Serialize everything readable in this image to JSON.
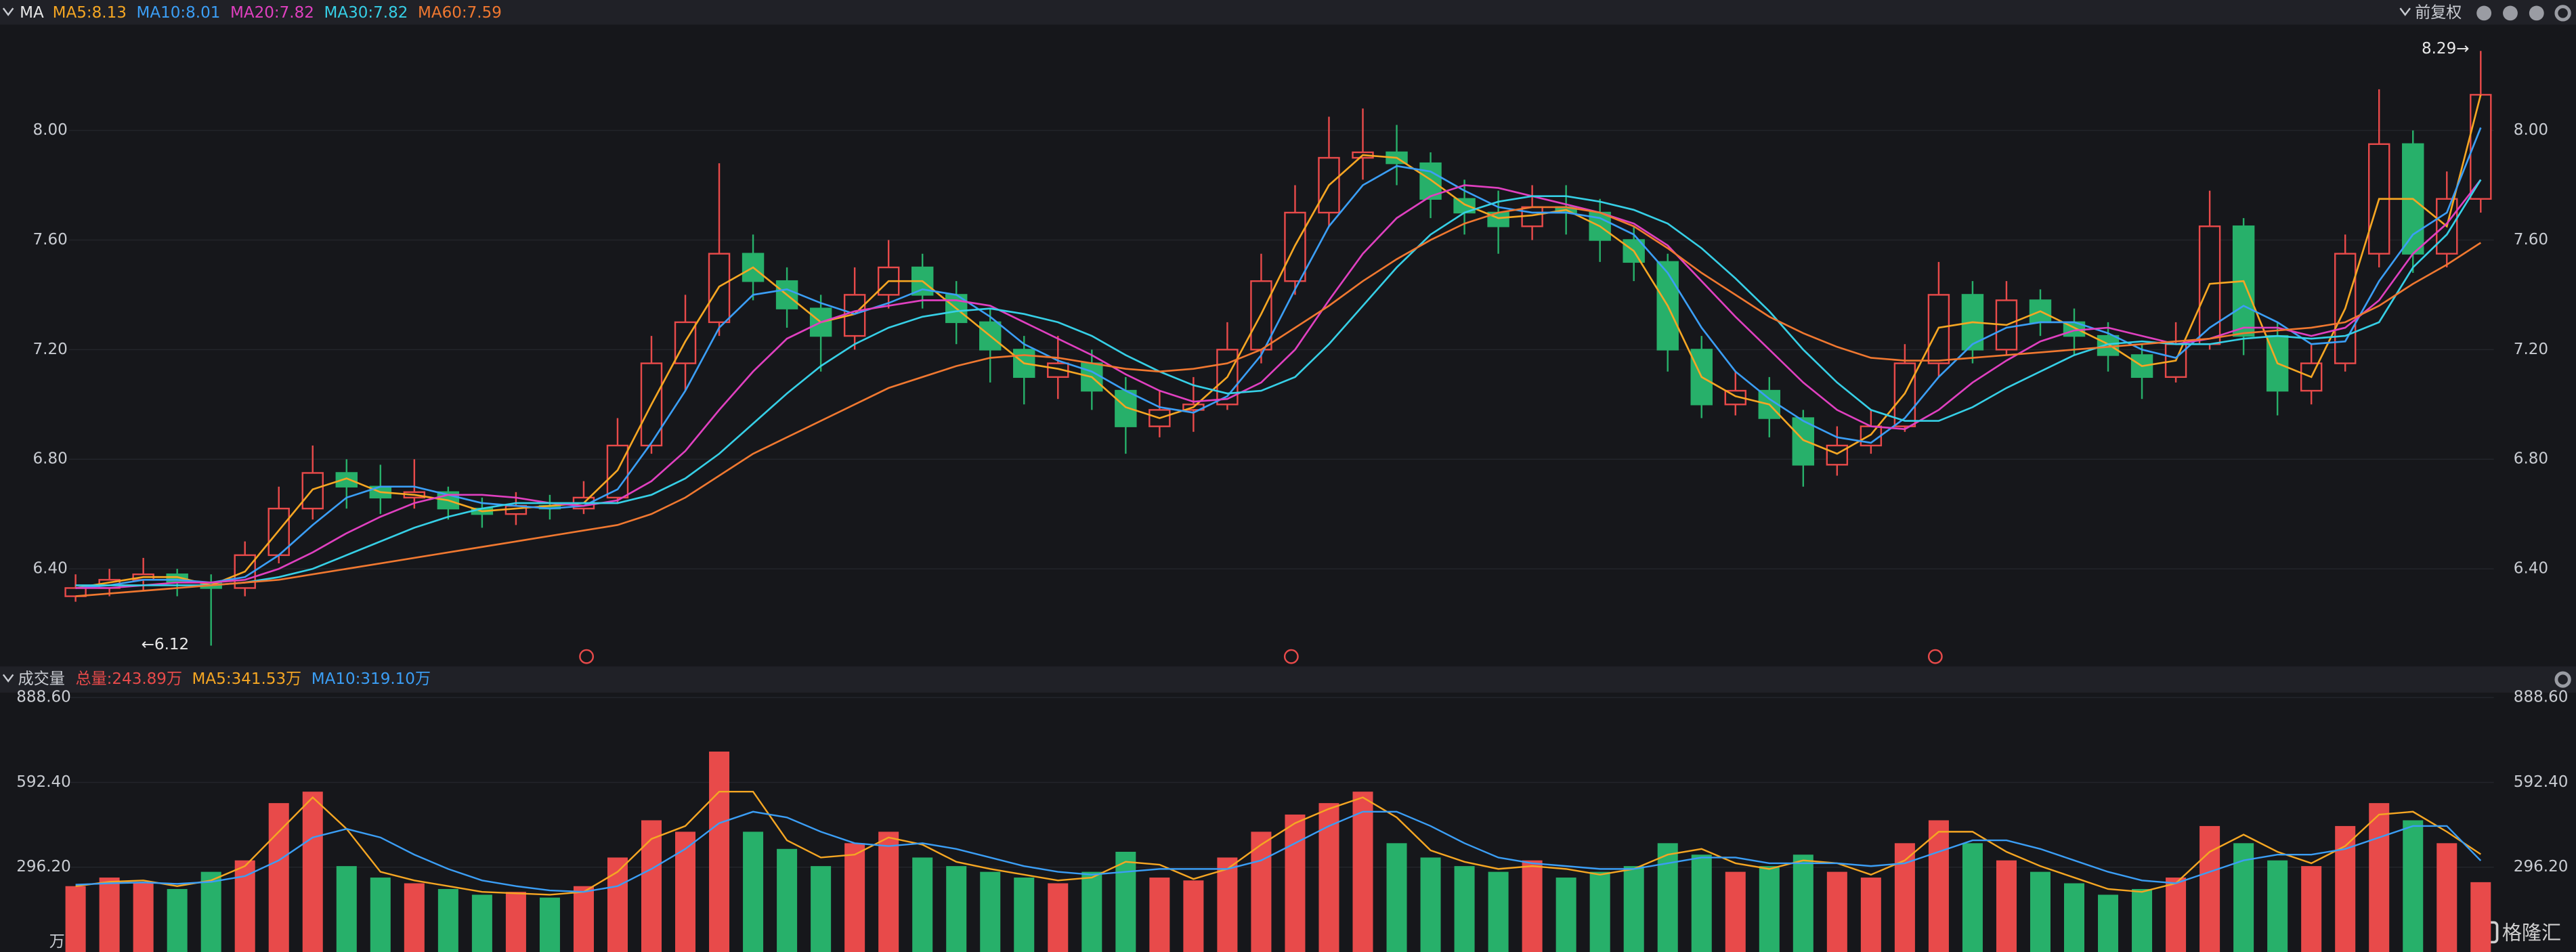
{
  "toolbar": {
    "indicator": "MA",
    "adjust": "前复权"
  },
  "watermark": "格隆汇",
  "chart_data": [
    {
      "type": "candlestick",
      "up_color": "#e84a4a",
      "down_color": "#27b06a",
      "ylim": [
        6.05,
        8.38
      ],
      "yticks": [
        {
          "value": 6.4,
          "label": "6.40"
        },
        {
          "value": 6.8,
          "label": "6.80"
        },
        {
          "value": 7.2,
          "label": "7.20"
        },
        {
          "value": 7.6,
          "label": "7.60"
        },
        {
          "value": 8.0,
          "label": "8.00"
        }
      ],
      "max_label": "8.29→",
      "min_label": "←6.12",
      "candles": [
        [
          6.3,
          6.38,
          6.28,
          6.33
        ],
        [
          6.33,
          6.4,
          6.3,
          6.36
        ],
        [
          6.36,
          6.44,
          6.32,
          6.38
        ],
        [
          6.38,
          6.4,
          6.3,
          6.35
        ],
        [
          6.35,
          6.38,
          6.12,
          6.33
        ],
        [
          6.33,
          6.5,
          6.3,
          6.45
        ],
        [
          6.45,
          6.7,
          6.42,
          6.62
        ],
        [
          6.62,
          6.85,
          6.58,
          6.75
        ],
        [
          6.75,
          6.8,
          6.62,
          6.7
        ],
        [
          6.7,
          6.78,
          6.6,
          6.66
        ],
        [
          6.66,
          6.8,
          6.62,
          6.68
        ],
        [
          6.68,
          6.7,
          6.58,
          6.62
        ],
        [
          6.62,
          6.66,
          6.55,
          6.6
        ],
        [
          6.6,
          6.68,
          6.56,
          6.63
        ],
        [
          6.63,
          6.67,
          6.58,
          6.62
        ],
        [
          6.62,
          6.72,
          6.6,
          6.66
        ],
        [
          6.66,
          6.95,
          6.64,
          6.85
        ],
        [
          6.85,
          7.25,
          6.82,
          7.15
        ],
        [
          7.15,
          7.4,
          7.05,
          7.3
        ],
        [
          7.3,
          7.88,
          7.25,
          7.55
        ],
        [
          7.55,
          7.62,
          7.38,
          7.45
        ],
        [
          7.45,
          7.5,
          7.28,
          7.35
        ],
        [
          7.35,
          7.4,
          7.12,
          7.25
        ],
        [
          7.25,
          7.5,
          7.2,
          7.4
        ],
        [
          7.4,
          7.6,
          7.35,
          7.5
        ],
        [
          7.5,
          7.55,
          7.35,
          7.4
        ],
        [
          7.4,
          7.45,
          7.22,
          7.3
        ],
        [
          7.3,
          7.35,
          7.08,
          7.2
        ],
        [
          7.2,
          7.25,
          7.0,
          7.1
        ],
        [
          7.1,
          7.25,
          7.02,
          7.15
        ],
        [
          7.15,
          7.2,
          6.98,
          7.05
        ],
        [
          7.05,
          7.1,
          6.82,
          6.92
        ],
        [
          6.92,
          7.05,
          6.88,
          6.98
        ],
        [
          6.98,
          7.1,
          6.9,
          7.0
        ],
        [
          7.0,
          7.3,
          6.98,
          7.2
        ],
        [
          7.2,
          7.55,
          7.15,
          7.45
        ],
        [
          7.45,
          7.8,
          7.4,
          7.7
        ],
        [
          7.7,
          8.05,
          7.65,
          7.9
        ],
        [
          7.9,
          8.08,
          7.82,
          7.92
        ],
        [
          7.92,
          8.02,
          7.8,
          7.88
        ],
        [
          7.88,
          7.92,
          7.68,
          7.75
        ],
        [
          7.75,
          7.82,
          7.62,
          7.7
        ],
        [
          7.7,
          7.78,
          7.55,
          7.65
        ],
        [
          7.65,
          7.8,
          7.6,
          7.72
        ],
        [
          7.72,
          7.8,
          7.62,
          7.7
        ],
        [
          7.7,
          7.75,
          7.52,
          7.6
        ],
        [
          7.6,
          7.65,
          7.45,
          7.52
        ],
        [
          7.52,
          7.55,
          7.12,
          7.2
        ],
        [
          7.2,
          7.25,
          6.95,
          7.0
        ],
        [
          7.0,
          7.12,
          6.96,
          7.05
        ],
        [
          7.05,
          7.1,
          6.88,
          6.95
        ],
        [
          6.95,
          6.98,
          6.7,
          6.78
        ],
        [
          6.78,
          6.92,
          6.74,
          6.85
        ],
        [
          6.85,
          6.98,
          6.82,
          6.92
        ],
        [
          6.92,
          7.22,
          6.9,
          7.15
        ],
        [
          7.15,
          7.52,
          7.1,
          7.4
        ],
        [
          7.4,
          7.45,
          7.15,
          7.2
        ],
        [
          7.2,
          7.45,
          7.18,
          7.38
        ],
        [
          7.38,
          7.42,
          7.25,
          7.3
        ],
        [
          7.3,
          7.35,
          7.18,
          7.25
        ],
        [
          7.25,
          7.3,
          7.12,
          7.18
        ],
        [
          7.18,
          7.22,
          7.02,
          7.1
        ],
        [
          7.1,
          7.3,
          7.08,
          7.22
        ],
        [
          7.22,
          7.78,
          7.2,
          7.65
        ],
        [
          7.65,
          7.68,
          7.18,
          7.25
        ],
        [
          7.25,
          7.3,
          6.96,
          7.05
        ],
        [
          7.05,
          7.22,
          7.0,
          7.15
        ],
        [
          7.15,
          7.62,
          7.12,
          7.55
        ],
        [
          7.55,
          8.15,
          7.5,
          7.95
        ],
        [
          7.95,
          8.0,
          7.48,
          7.55
        ],
        [
          7.55,
          7.85,
          7.5,
          7.75
        ],
        [
          7.75,
          8.29,
          7.7,
          8.13
        ]
      ],
      "series": [
        {
          "name": "MA5:8.13",
          "color": "#f5a623",
          "values": [
            6.33,
            6.35,
            6.37,
            6.37,
            6.34,
            6.39,
            6.54,
            6.69,
            6.73,
            6.68,
            6.67,
            6.65,
            6.61,
            6.62,
            6.63,
            6.64,
            6.76,
            7.0,
            7.23,
            7.43,
            7.5,
            7.4,
            7.3,
            7.33,
            7.45,
            7.45,
            7.35,
            7.25,
            7.15,
            7.13,
            7.1,
            6.99,
            6.95,
            6.99,
            7.1,
            7.33,
            7.58,
            7.8,
            7.91,
            7.9,
            7.82,
            7.73,
            7.68,
            7.69,
            7.71,
            7.65,
            7.56,
            7.36,
            7.1,
            7.03,
            7.0,
            6.87,
            6.82,
            6.89,
            7.04,
            7.28,
            7.3,
            7.29,
            7.34,
            7.28,
            7.22,
            7.14,
            7.16,
            7.44,
            7.45,
            7.15,
            7.1,
            7.35,
            7.75,
            7.75,
            7.65,
            8.13
          ]
        },
        {
          "name": "MA10:8.01",
          "color": "#3b9ef5",
          "values": [
            6.33,
            6.34,
            6.36,
            6.36,
            6.35,
            6.37,
            6.45,
            6.56,
            6.66,
            6.7,
            6.7,
            6.67,
            6.64,
            6.63,
            6.62,
            6.63,
            6.69,
            6.86,
            7.05,
            7.28,
            7.4,
            7.42,
            7.37,
            7.33,
            7.37,
            7.42,
            7.4,
            7.32,
            7.22,
            7.16,
            7.12,
            7.05,
            6.99,
            6.97,
            7.03,
            7.18,
            7.42,
            7.65,
            7.8,
            7.87,
            7.85,
            7.78,
            7.72,
            7.7,
            7.7,
            7.68,
            7.62,
            7.48,
            7.28,
            7.12,
            7.02,
            6.94,
            6.88,
            6.86,
            6.95,
            7.1,
            7.22,
            7.28,
            7.3,
            7.3,
            7.26,
            7.2,
            7.17,
            7.28,
            7.36,
            7.3,
            7.22,
            7.23,
            7.45,
            7.62,
            7.7,
            8.01
          ]
        },
        {
          "name": "MA20:7.82",
          "color": "#e040c0",
          "values": [
            6.33,
            6.33,
            6.34,
            6.35,
            6.35,
            6.36,
            6.4,
            6.46,
            6.53,
            6.59,
            6.64,
            6.67,
            6.67,
            6.66,
            6.64,
            6.63,
            6.65,
            6.72,
            6.83,
            6.98,
            7.12,
            7.24,
            7.3,
            7.34,
            7.36,
            7.38,
            7.38,
            7.36,
            7.3,
            7.24,
            7.18,
            7.11,
            7.05,
            7.01,
            7.02,
            7.08,
            7.2,
            7.38,
            7.55,
            7.68,
            7.76,
            7.8,
            7.79,
            7.76,
            7.73,
            7.7,
            7.66,
            7.58,
            7.45,
            7.32,
            7.2,
            7.08,
            6.98,
            6.92,
            6.91,
            6.98,
            7.08,
            7.16,
            7.23,
            7.27,
            7.28,
            7.25,
            7.22,
            7.24,
            7.28,
            7.28,
            7.25,
            7.28,
            7.38,
            7.55,
            7.66,
            7.82
          ]
        },
        {
          "name": "MA30:7.82",
          "color": "#36cfe6",
          "values": [
            6.34,
            6.34,
            6.34,
            6.34,
            6.34,
            6.35,
            6.37,
            6.4,
            6.45,
            6.5,
            6.55,
            6.59,
            6.62,
            6.64,
            6.64,
            6.64,
            6.64,
            6.67,
            6.73,
            6.82,
            6.93,
            7.04,
            7.14,
            7.22,
            7.28,
            7.32,
            7.34,
            7.35,
            7.33,
            7.3,
            7.25,
            7.18,
            7.12,
            7.07,
            7.04,
            7.05,
            7.1,
            7.22,
            7.36,
            7.5,
            7.62,
            7.7,
            7.74,
            7.76,
            7.76,
            7.74,
            7.71,
            7.66,
            7.57,
            7.46,
            7.34,
            7.2,
            7.08,
            6.98,
            6.94,
            6.94,
            6.99,
            7.06,
            7.12,
            7.18,
            7.22,
            7.23,
            7.22,
            7.22,
            7.24,
            7.25,
            7.24,
            7.25,
            7.3,
            7.5,
            7.62,
            7.82
          ]
        },
        {
          "name": "MA60:7.59",
          "color": "#f07830",
          "values": [
            6.3,
            6.31,
            6.32,
            6.33,
            6.34,
            6.35,
            6.36,
            6.38,
            6.4,
            6.42,
            6.44,
            6.46,
            6.48,
            6.5,
            6.52,
            6.54,
            6.56,
            6.6,
            6.66,
            6.74,
            6.82,
            6.88,
            6.94,
            7.0,
            7.06,
            7.1,
            7.14,
            7.17,
            7.18,
            7.17,
            7.15,
            7.13,
            7.12,
            7.13,
            7.15,
            7.2,
            7.28,
            7.36,
            7.45,
            7.53,
            7.6,
            7.66,
            7.7,
            7.72,
            7.72,
            7.7,
            7.65,
            7.57,
            7.48,
            7.4,
            7.32,
            7.26,
            7.21,
            7.17,
            7.16,
            7.16,
            7.17,
            7.18,
            7.19,
            7.2,
            7.21,
            7.22,
            7.23,
            7.24,
            7.26,
            7.27,
            7.28,
            7.3,
            7.36,
            7.44,
            7.51,
            7.59
          ]
        }
      ]
    },
    {
      "type": "bar",
      "title": "成交量",
      "unit": "万",
      "total_label": "总量:243.89万",
      "total_color": "#e84a4a",
      "ylim": [
        0,
        900
      ],
      "yticks": [
        {
          "value": 296.2,
          "label": "296.20"
        },
        {
          "value": 592.4,
          "label": "592.40"
        },
        {
          "value": 888.6,
          "label": "888.60"
        }
      ],
      "values": [
        230,
        260,
        240,
        220,
        280,
        320,
        520,
        560,
        300,
        260,
        240,
        220,
        200,
        210,
        190,
        230,
        330,
        460,
        420,
        700,
        420,
        360,
        300,
        380,
        420,
        330,
        300,
        280,
        260,
        240,
        280,
        350,
        260,
        250,
        330,
        420,
        480,
        520,
        560,
        380,
        330,
        300,
        280,
        320,
        260,
        280,
        300,
        380,
        340,
        280,
        300,
        340,
        280,
        260,
        380,
        460,
        380,
        320,
        280,
        240,
        200,
        220,
        260,
        440,
        380,
        320,
        300,
        440,
        520,
        460,
        380,
        243.89
      ],
      "series": [
        {
          "name": "MA5:341.53万",
          "color": "#f5a623",
          "values": [
            230,
            245,
            250,
            230,
            250,
            300,
            420,
            540,
            430,
            280,
            250,
            230,
            210,
            205,
            200,
            210,
            280,
            395,
            440,
            560,
            560,
            390,
            330,
            340,
            400,
            375,
            315,
            290,
            270,
            250,
            260,
            315,
            305,
            255,
            290,
            375,
            450,
            500,
            540,
            470,
            355,
            315,
            290,
            300,
            290,
            270,
            290,
            340,
            360,
            310,
            290,
            320,
            310,
            270,
            320,
            420,
            420,
            350,
            300,
            260,
            220,
            210,
            240,
            350,
            410,
            350,
            310,
            370,
            480,
            490,
            420,
            341.53
          ]
        },
        {
          "name": "MA10:319.10万",
          "color": "#3b9ef5",
          "values": [
            235,
            240,
            243,
            238,
            245,
            265,
            320,
            400,
            430,
            400,
            340,
            290,
            250,
            230,
            215,
            210,
            230,
            290,
            360,
            450,
            490,
            470,
            420,
            380,
            370,
            380,
            360,
            330,
            300,
            280,
            270,
            280,
            290,
            290,
            290,
            320,
            380,
            440,
            490,
            490,
            440,
            380,
            330,
            310,
            300,
            290,
            290,
            310,
            330,
            330,
            310,
            310,
            310,
            300,
            310,
            350,
            390,
            390,
            360,
            320,
            280,
            250,
            240,
            280,
            320,
            340,
            340,
            360,
            400,
            440,
            440,
            319.1
          ]
        }
      ]
    }
  ]
}
